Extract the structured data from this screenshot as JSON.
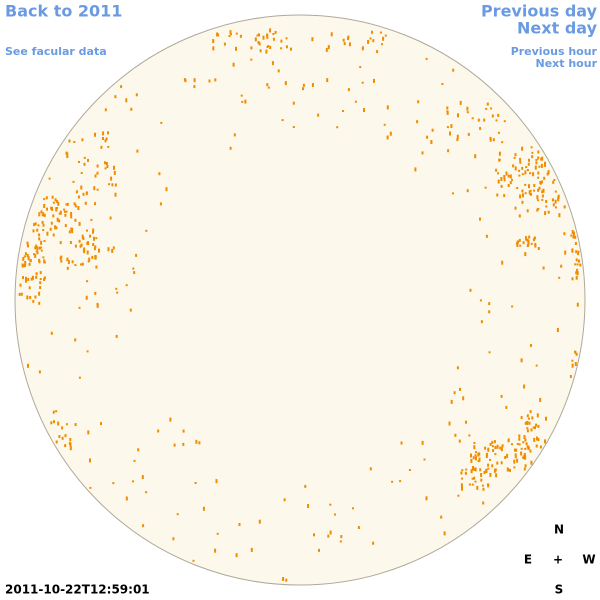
{
  "nav": {
    "back": "Back to 2011",
    "facular": "See facular data",
    "previous_day": "Previous day",
    "next_day": "Next day",
    "previous_hour": "Previous hour",
    "next_hour": "Next hour"
  },
  "timestamp": "2011-10-22T12:59:01",
  "compass": {
    "north": "N",
    "south": "S",
    "east": "E",
    "west": "W",
    "center": "+"
  }
}
